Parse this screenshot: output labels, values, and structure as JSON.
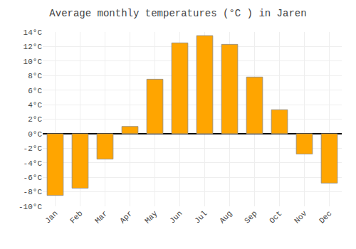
{
  "chart_data": {
    "type": "bar",
    "title": "Average monthly temperatures (°C ) in Jaren",
    "categories": [
      "Jan",
      "Feb",
      "Mar",
      "Apr",
      "May",
      "Jun",
      "Jul",
      "Aug",
      "Sep",
      "Oct",
      "Nov",
      "Dec"
    ],
    "values": [
      -8.5,
      -7.5,
      -3.5,
      1.0,
      7.5,
      12.5,
      13.5,
      12.3,
      7.8,
      3.3,
      -2.8,
      -6.8
    ],
    "color": "#FFA500",
    "ylim": [
      -10,
      14
    ],
    "yticks": [
      {
        "value": -10,
        "label": "-10°C"
      },
      {
        "value": -8,
        "label": "-8°C"
      },
      {
        "value": -6,
        "label": "-6°C"
      },
      {
        "value": -4,
        "label": "-4°C"
      },
      {
        "value": -2,
        "label": "-2°C"
      },
      {
        "value": 0,
        "label": "0°C"
      },
      {
        "value": 2,
        "label": "2°C"
      },
      {
        "value": 4,
        "label": "4°C"
      },
      {
        "value": 6,
        "label": "6°C"
      },
      {
        "value": 8,
        "label": "8°C"
      },
      {
        "value": 10,
        "label": "10°C"
      },
      {
        "value": 12,
        "label": "12°C"
      },
      {
        "value": 14,
        "label": "14°C"
      }
    ],
    "grid": true
  }
}
